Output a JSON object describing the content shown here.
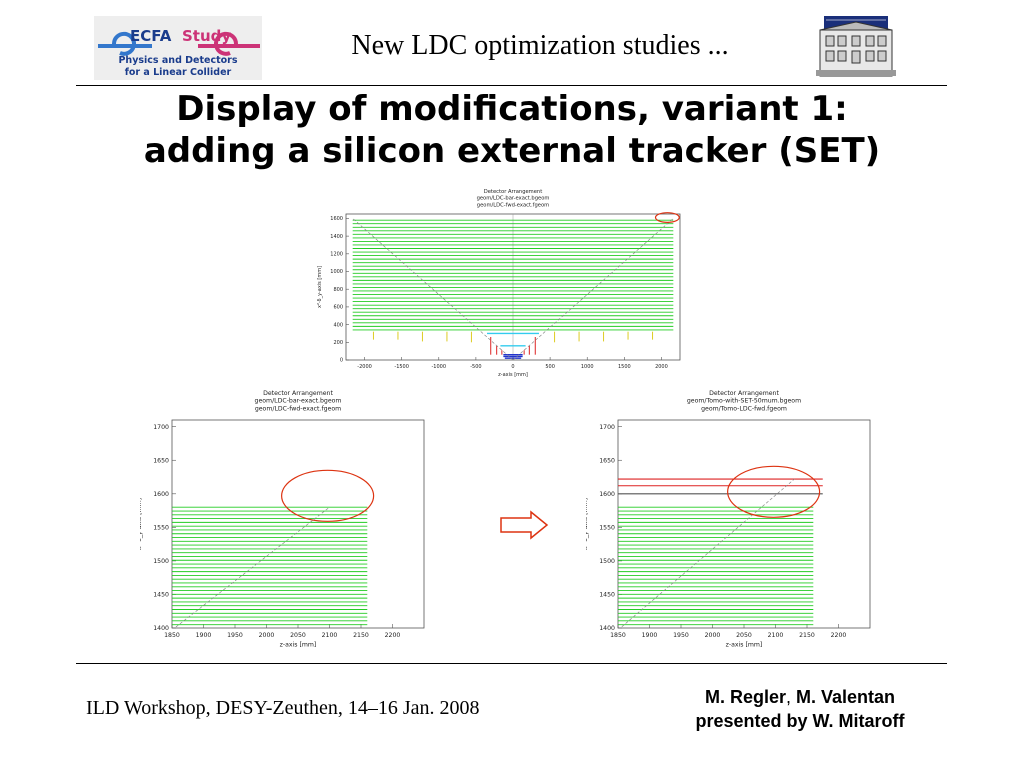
{
  "header": {
    "logo": {
      "line1": "ECFA",
      "line2": "Study",
      "line3": "Physics and Detectors",
      "line4": "for a Linear Collider"
    },
    "title": "New LDC optimization studies ..."
  },
  "slide": {
    "title_line1": "Display of modifications, variant 1:",
    "title_line2": "adding a silicon external tracker (SET)"
  },
  "footer": {
    "left": "ILD Workshop, DESY-Zeuthen, 14–16 Jan. 2008",
    "right_line1_a": "M. Regler",
    "right_line1_sep": ",",
    "right_line1_b": " M. Valentan",
    "right_line2": "presented by W. Mitaroff"
  },
  "colors": {
    "tracker_layers": "#22cc22",
    "set_layers": "#dd2222",
    "annotation": "#dd3311",
    "arrow": "#dd3311",
    "guide_line": "#888888"
  },
  "arrow_icon": "right-arrow-outline-icon",
  "chart_data": [
    {
      "type": "line",
      "title_lines": [
        "Detector Arrangement",
        "geom/LDC-bar-exact.bgeom",
        "geom/LDC-fwd-exact.fgeom"
      ],
      "xlabel": "z-axis [mm]",
      "ylabel": "x²·δ_y-axis [mm]",
      "xlim": [
        -2250,
        2250
      ],
      "ylim": [
        0,
        1650
      ],
      "xticks": [
        -2000,
        -1500,
        -1000,
        -500,
        0,
        500,
        1000,
        1500,
        2000
      ],
      "yticks": [
        0,
        200,
        400,
        600,
        800,
        1000,
        1200,
        1400,
        1600
      ],
      "tracker_layers": {
        "r_min": 340,
        "r_max": 1580,
        "count": 32,
        "z_min": -2160,
        "z_max": 2160
      },
      "forward_disks": [
        {
          "z": -1880,
          "r1": 230,
          "r2": 320,
          "color": "#ddcc22"
        },
        {
          "z": -1550,
          "r1": 230,
          "r2": 320,
          "color": "#ddcc22"
        },
        {
          "z": -1220,
          "r1": 210,
          "r2": 320,
          "color": "#ddcc22"
        },
        {
          "z": -890,
          "r1": 210,
          "r2": 320,
          "color": "#ddcc22"
        },
        {
          "z": -560,
          "r1": 200,
          "r2": 320,
          "color": "#ddcc22"
        },
        {
          "z": -300,
          "r1": 60,
          "r2": 260,
          "color": "#dd2222"
        },
        {
          "z": -220,
          "r1": 60,
          "r2": 160,
          "color": "#dd2222"
        },
        {
          "z": -150,
          "r1": 60,
          "r2": 110,
          "color": "#dd2222"
        },
        {
          "z": 150,
          "r1": 60,
          "r2": 110,
          "color": "#dd2222"
        },
        {
          "z": 220,
          "r1": 60,
          "r2": 160,
          "color": "#dd2222"
        },
        {
          "z": 300,
          "r1": 60,
          "r2": 260,
          "color": "#dd2222"
        },
        {
          "z": 560,
          "r1": 200,
          "r2": 320,
          "color": "#ddcc22"
        },
        {
          "z": 890,
          "r1": 210,
          "r2": 320,
          "color": "#ddcc22"
        },
        {
          "z": 1220,
          "r1": 210,
          "r2": 320,
          "color": "#ddcc22"
        },
        {
          "z": 1550,
          "r1": 230,
          "r2": 320,
          "color": "#ddcc22"
        },
        {
          "z": 1880,
          "r1": 230,
          "r2": 320,
          "color": "#ddcc22"
        }
      ],
      "inner_barrel": [
        {
          "r": 300,
          "z_min": -350,
          "z_max": 350,
          "color": "#33ccee"
        },
        {
          "r": 160,
          "z_min": -170,
          "z_max": 170,
          "color": "#33ccee"
        },
        {
          "r": 60,
          "z_min": -130,
          "z_max": 130,
          "color": "#2233cc"
        },
        {
          "r": 40,
          "z_min": -130,
          "z_max": 130,
          "color": "#2233cc"
        },
        {
          "r": 20,
          "z_min": -110,
          "z_max": 110,
          "color": "#2233cc"
        }
      ],
      "guide_lines": [
        {
          "from": [
            0,
            0
          ],
          "to": [
            -2160,
            1600
          ]
        },
        {
          "from": [
            0,
            0
          ],
          "to": [
            2160,
            1600
          ]
        }
      ],
      "highlight": {
        "cx": 2080,
        "cy": 1610,
        "rx": 160,
        "ry": 55
      }
    },
    {
      "type": "line",
      "title_lines": [
        "Detector Arrangement",
        "geom/LDC-bar-exact.bgeom",
        "geom/LDC-fwd-exact.fgeom"
      ],
      "xlabel": "z-axis [mm]",
      "ylabel": "x²·δ_y-axis [mm]",
      "xlim": [
        1850,
        2250
      ],
      "ylim": [
        1400,
        1710
      ],
      "xticks": [
        1850,
        1900,
        1950,
        2000,
        2050,
        2100,
        2150,
        2200
      ],
      "yticks": [
        1400,
        1450,
        1500,
        1550,
        1600,
        1650,
        1700
      ],
      "tracker_layers": {
        "r_min": 1405,
        "r_max": 1580,
        "count": 32,
        "z_min": 1850,
        "z_max": 2160
      },
      "set_layers": [],
      "guide_lines": [
        {
          "from": [
            1850,
            1397
          ],
          "to": [
            2100,
            1580
          ]
        }
      ],
      "highlight": {
        "cx": 2097,
        "cy": 1597,
        "rx": 73,
        "ry": 38
      }
    },
    {
      "type": "line",
      "title_lines": [
        "Detector Arrangement",
        "geom/Tomo-with-SET-50mum.bgeom",
        "geom/Tomo-LDC-fwd.fgeom"
      ],
      "xlabel": "z-axis [mm]",
      "ylabel": "x²·δ_y-axis [mm]",
      "xlim": [
        1850,
        2250
      ],
      "ylim": [
        1400,
        1710
      ],
      "xticks": [
        1850,
        1900,
        1950,
        2000,
        2050,
        2100,
        2150,
        2200
      ],
      "yticks": [
        1400,
        1450,
        1500,
        1550,
        1600,
        1650,
        1700
      ],
      "tracker_layers": {
        "r_min": 1405,
        "r_max": 1580,
        "count": 32,
        "z_min": 1850,
        "z_max": 2160
      },
      "set_layers": [
        {
          "r": 1622,
          "z_min": 1850,
          "z_max": 2175,
          "color": "#dd2222"
        },
        {
          "r": 1612,
          "z_min": 1850,
          "z_max": 2175,
          "color": "#dd2222"
        },
        {
          "r": 1600,
          "z_min": 1850,
          "z_max": 2175,
          "color": "#555555"
        }
      ],
      "guide_lines": [
        {
          "from": [
            1850,
            1397
          ],
          "to": [
            2130,
            1622
          ]
        }
      ],
      "highlight": {
        "cx": 2097,
        "cy": 1603,
        "rx": 73,
        "ry": 38
      }
    }
  ]
}
